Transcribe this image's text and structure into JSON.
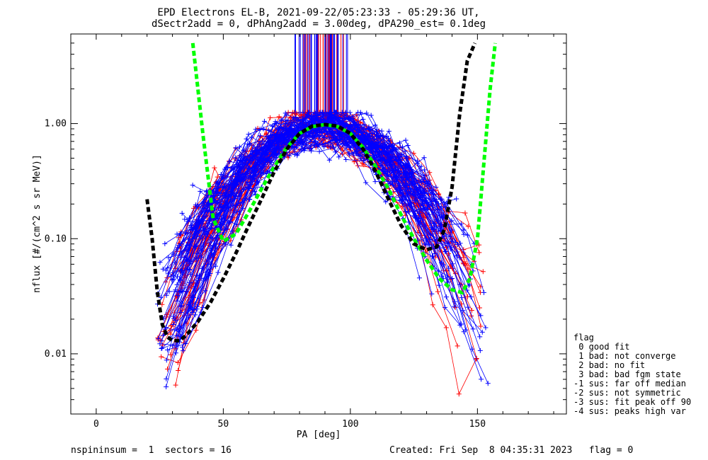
{
  "chart_data": {
    "type": "line",
    "title": "EPD Electrons EL-B, 2021-09-22/05:23:33 - 05:29:36 UT,",
    "subtitle": "dSectr2add = 0, dPhAng2add = 3.00deg, dPA290_est=   0.1deg",
    "xlabel": "PA [deg]",
    "ylabel": "nflux [#/(cm^2 s sr MeV)]",
    "xlim": [
      -10,
      185
    ],
    "ylim": [
      0.003,
      6.0
    ],
    "yscale": "log",
    "x_ticks": [
      0,
      50,
      100,
      150
    ],
    "x_tick_labels": [
      "0",
      "50",
      "100",
      "150"
    ],
    "y_ticks": [
      0.01,
      0.1,
      1.0
    ],
    "y_tick_labels": [
      "0.01",
      "0.10",
      "1.00"
    ],
    "series": [
      {
        "name": "measured spectra (blue, +)",
        "color": "#0000ff",
        "marker": "+",
        "count": 70
      },
      {
        "name": "measured spectra (red, +)",
        "color": "#ff0000",
        "marker": "+",
        "count": 45
      },
      {
        "name": "fit (green dashed)",
        "color": "#00ff00",
        "style": "dashed",
        "x": [
          38,
          42,
          46,
          50,
          55,
          60,
          65,
          70,
          75,
          80,
          85,
          90,
          95,
          100,
          105,
          110,
          115,
          120,
          125,
          130,
          135,
          140,
          144,
          147,
          150,
          153,
          155,
          157
        ],
        "y": [
          5.0,
          0.8,
          0.15,
          0.095,
          0.11,
          0.17,
          0.27,
          0.42,
          0.62,
          0.82,
          0.94,
          0.98,
          0.94,
          0.82,
          0.62,
          0.42,
          0.27,
          0.16,
          0.1,
          0.065,
          0.045,
          0.036,
          0.034,
          0.045,
          0.1,
          0.6,
          2.0,
          5.0
        ]
      },
      {
        "name": "fit (black dashed)",
        "color": "#000000",
        "style": "dashed",
        "x": [
          20,
          22,
          24,
          26,
          28,
          30,
          33,
          36,
          40,
          45,
          50,
          55,
          60,
          65,
          70,
          75,
          80,
          85,
          90,
          95,
          100,
          105,
          110,
          115,
          120,
          125,
          130,
          134,
          137,
          140,
          143,
          146,
          149
        ],
        "y": [
          0.22,
          0.1,
          0.035,
          0.018,
          0.014,
          0.013,
          0.013,
          0.015,
          0.019,
          0.028,
          0.045,
          0.075,
          0.13,
          0.22,
          0.38,
          0.6,
          0.82,
          0.95,
          0.98,
          0.95,
          0.82,
          0.6,
          0.38,
          0.22,
          0.13,
          0.09,
          0.08,
          0.085,
          0.12,
          0.28,
          1.2,
          3.5,
          5.0
        ]
      }
    ],
    "legend_position": "bottom-right, outside plot"
  },
  "legend": {
    "title": "flag",
    "items": [
      " 0 good fit",
      " 1 bad: not converge",
      " 2 bad: no fit",
      " 3 bad: bad fgm state",
      "-1 sus: far off median",
      "-2 sus: not symmetric",
      "-3 sus: fit peak off 90",
      "-4 sus: peaks high var"
    ]
  },
  "footer": {
    "left": "nspininsum =  1  sectors = 16",
    "right": "Created: Fri Sep  8 04:35:31 2023   flag = 0"
  }
}
